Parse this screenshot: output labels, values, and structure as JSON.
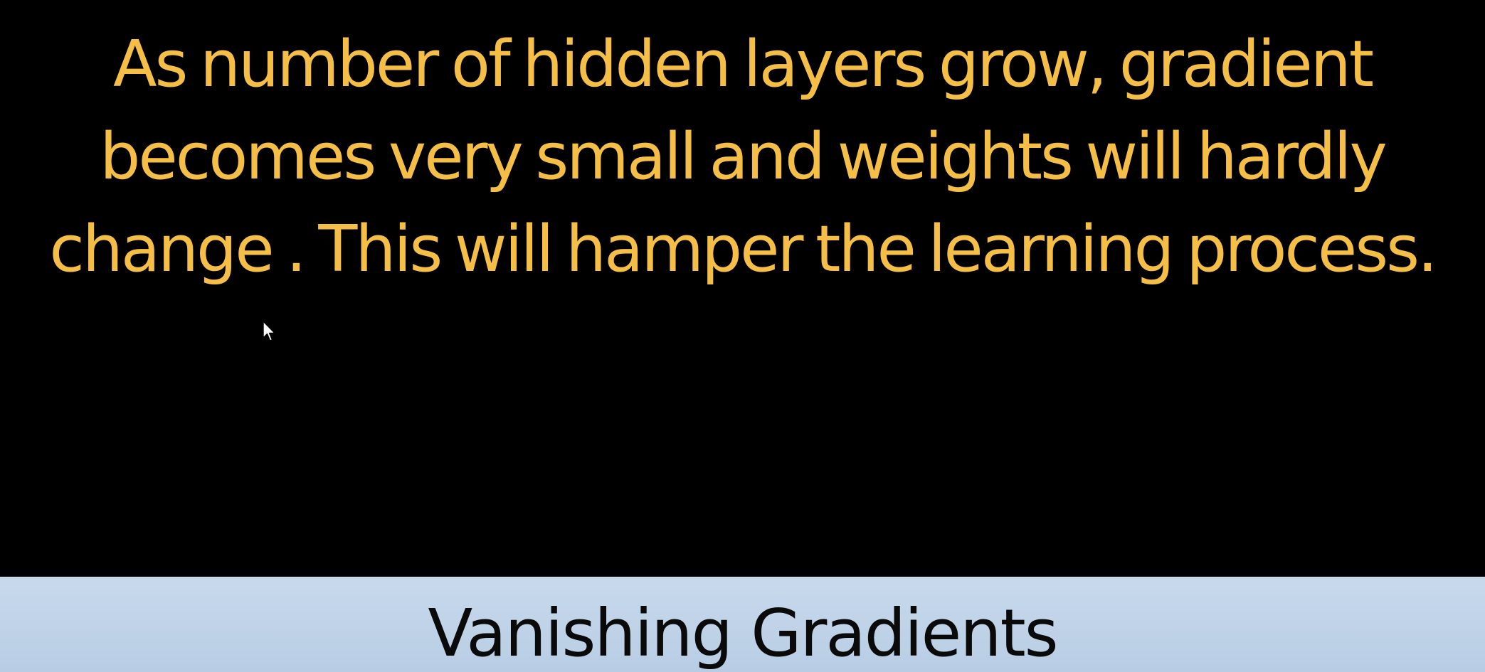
{
  "slide": {
    "body_lines": [
      "As number of hidden layers grow, gradient",
      "becomes very small and weights will hardly",
      "change . This will hamper the learning process."
    ],
    "title": "Vanishing Gradients"
  },
  "colors": {
    "background": "#000000",
    "body_text": "#F5BE46",
    "title_bar": "#C3D6EB",
    "title_text": "#0A0A0A"
  },
  "icons": {
    "cursor": "mouse-pointer-icon"
  }
}
